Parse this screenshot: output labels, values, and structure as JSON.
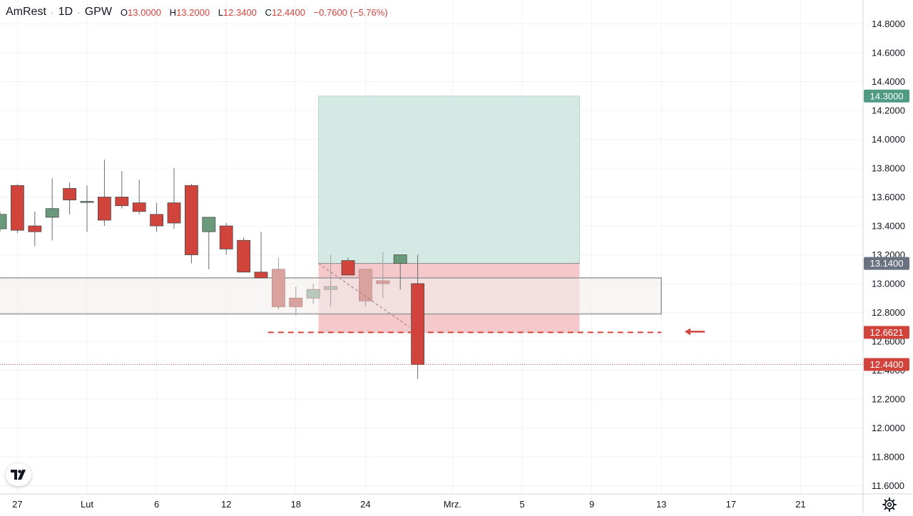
{
  "header": {
    "symbol": "AmRest",
    "interval": "1D",
    "exchange": "GPW",
    "separator": "·",
    "open_label": "O",
    "open": "13.0000",
    "high_label": "H",
    "high": "13.2000",
    "low_label": "L",
    "low": "12.3400",
    "close_label": "C",
    "close": "12.4400",
    "change": "−0.7600 (−5.76%)"
  },
  "colors": {
    "up": "#6a9a7a",
    "down": "#d1443b",
    "down_faded": "#d9a29d",
    "target_zone": "#d5e9e4",
    "stop_zone": "#f5c9cb",
    "range_box": "#f3eeee",
    "grid": "#f0f3fa",
    "axis_text": "#131722",
    "price_tag": "#d1443b",
    "target_tag": "#4f9a82",
    "entry_tag": "#6b7280"
  },
  "icons": {
    "logo": "tradingview-logo-icon",
    "settings": "gear-icon",
    "arrow": "arrow-left-icon"
  },
  "chart_data": {
    "type": "candlestick",
    "y_axis": {
      "min": 11.58,
      "max": 14.88,
      "ticks": [
        "14.8000",
        "14.6000",
        "14.4000",
        "14.2000",
        "14.0000",
        "13.8000",
        "13.6000",
        "13.4000",
        "13.2000",
        "13.0000",
        "12.8000",
        "12.6000",
        "12.4000",
        "12.2000",
        "12.0000",
        "11.8000",
        "11.6000"
      ]
    },
    "x_axis": {
      "labels": [
        {
          "text": "27",
          "index": 1
        },
        {
          "text": "Lut",
          "index": 5
        },
        {
          "text": "6",
          "index": 9
        },
        {
          "text": "12",
          "index": 13
        },
        {
          "text": "18",
          "index": 17
        },
        {
          "text": "24",
          "index": 21
        },
        {
          "text": "Mrz.",
          "index": 26
        },
        {
          "text": "5",
          "index": 30
        },
        {
          "text": "9",
          "index": 34
        },
        {
          "text": "13",
          "index": 38
        },
        {
          "text": "17",
          "index": 42
        },
        {
          "text": "21",
          "index": 46
        }
      ]
    },
    "candles": [
      {
        "o": 13.38,
        "h": 13.5,
        "l": 13.36,
        "c": 13.48,
        "faded": false
      },
      {
        "o": 13.68,
        "h": 13.69,
        "l": 13.35,
        "c": 13.37,
        "faded": false
      },
      {
        "o": 13.4,
        "h": 13.5,
        "l": 13.26,
        "c": 13.36,
        "faded": false
      },
      {
        "o": 13.46,
        "h": 13.73,
        "l": 13.3,
        "c": 13.52,
        "faded": false
      },
      {
        "o": 13.66,
        "h": 13.7,
        "l": 13.48,
        "c": 13.58,
        "faded": false
      },
      {
        "o": 13.57,
        "h": 13.68,
        "l": 13.36,
        "c": 13.57,
        "faded": false
      },
      {
        "o": 13.6,
        "h": 13.86,
        "l": 13.4,
        "c": 13.44,
        "faded": false
      },
      {
        "o": 13.6,
        "h": 13.78,
        "l": 13.52,
        "c": 13.54,
        "faded": false
      },
      {
        "o": 13.56,
        "h": 13.72,
        "l": 13.48,
        "c": 13.5,
        "faded": false
      },
      {
        "o": 13.48,
        "h": 13.56,
        "l": 13.36,
        "c": 13.4,
        "faded": false
      },
      {
        "o": 13.56,
        "h": 13.8,
        "l": 13.38,
        "c": 13.42,
        "faded": false
      },
      {
        "o": 13.68,
        "h": 13.69,
        "l": 13.14,
        "c": 13.2,
        "faded": false
      },
      {
        "o": 13.36,
        "h": 13.46,
        "l": 13.1,
        "c": 13.46,
        "faded": false
      },
      {
        "o": 13.4,
        "h": 13.42,
        "l": 13.2,
        "c": 13.24,
        "faded": false
      },
      {
        "o": 13.3,
        "h": 13.32,
        "l": 13.08,
        "c": 13.08,
        "faded": false
      },
      {
        "o": 13.08,
        "h": 13.36,
        "l": 13.04,
        "c": 13.04,
        "faded": false
      },
      {
        "o": 13.1,
        "h": 13.18,
        "l": 12.82,
        "c": 12.84,
        "faded": true
      },
      {
        "o": 12.9,
        "h": 12.98,
        "l": 12.78,
        "c": 12.84,
        "faded": true
      },
      {
        "o": 12.9,
        "h": 13.0,
        "l": 12.86,
        "c": 12.96,
        "faded": true
      },
      {
        "o": 12.96,
        "h": 13.2,
        "l": 12.84,
        "c": 12.98,
        "faded": true
      },
      {
        "o": 13.16,
        "h": 13.18,
        "l": 13.06,
        "c": 13.06,
        "faded": false
      },
      {
        "o": 13.1,
        "h": 13.1,
        "l": 12.84,
        "c": 12.88,
        "faded": true
      },
      {
        "o": 13.02,
        "h": 13.22,
        "l": 12.9,
        "c": 13.0,
        "faded": true
      },
      {
        "o": 13.14,
        "h": 13.2,
        "l": 12.96,
        "c": 13.2,
        "faded": false
      },
      {
        "o": 13.0,
        "h": 13.2,
        "l": 12.34,
        "c": 12.44,
        "faded": false
      }
    ],
    "position": {
      "entry": 13.14,
      "target": 14.3,
      "stop": 12.66,
      "start_index": 18.3,
      "end_index": 33.3
    },
    "range_box": {
      "top": 13.04,
      "bottom": 12.79,
      "start_index": -1,
      "end_index": 38
    },
    "dashed_level": {
      "value": 12.6621,
      "start_index": 15.4,
      "end_index": 38
    },
    "current_price": 12.44,
    "price_tags": [
      {
        "text": "14.3000",
        "value": 14.3,
        "color": "#4f9a82"
      },
      {
        "text": "13.1400",
        "value": 13.14,
        "color": "#6b7280"
      },
      {
        "text": "12.6621",
        "value": 12.6621,
        "color": "#d1443b"
      },
      {
        "text": "12.4400",
        "value": 12.44,
        "color": "#d1443b"
      }
    ]
  }
}
